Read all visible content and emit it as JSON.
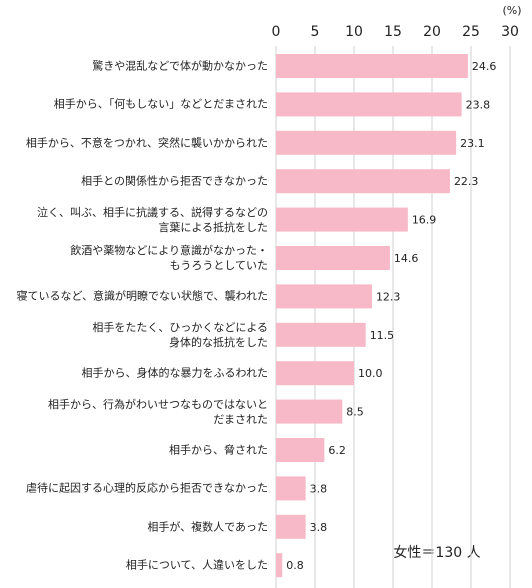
{
  "chart_data": {
    "type": "barh",
    "unit_label": "(%)",
    "annotation": "女性＝130 人",
    "categories": [
      "驚きや混乱などで体が動かなかった",
      "相手から、「何もしない」などとだまされた",
      "相手から、不意をつかれ、突然に襲いかかられた",
      "相手との関係性から拒否できなかった",
      "泣く、叫ぶ、相手に抗議する、説得するなどの\n言葉による抵抗をした",
      "飲酒や薬物などにより意識がなかった・\nもうろうとしていた",
      "寝ているなど、意識が明瞭でない状態で、襲われた",
      "相手をたたく、ひっかくなどによる\n身体的な抵抗をした",
      "相手から、身体的な暴力をふるわれた",
      "相手から、行為がわいせつなものではないと\nだまされた",
      "相手から、脅された",
      "虐待に起因する心理的反応から拒否できなかった",
      "相手が、複数人であった",
      "相手について、人違いをした"
    ],
    "values": [
      24.6,
      23.8,
      23.1,
      22.3,
      16.9,
      14.6,
      12.3,
      11.5,
      10,
      8.5,
      6.2,
      3.8,
      3.8,
      0.8
    ],
    "value_labels": [
      "24.6",
      "23.8",
      "23.1",
      "22.3",
      "16.9",
      "14.6",
      "12.3",
      "11.5",
      "10.0",
      "8.5",
      "6.2",
      "3.8",
      "3.8",
      "0.8"
    ],
    "color": "#f7b8c8",
    "xlim": [
      0,
      30
    ],
    "xticks": [
      0,
      5,
      10,
      15,
      20,
      25,
      30
    ],
    "grid": true
  }
}
